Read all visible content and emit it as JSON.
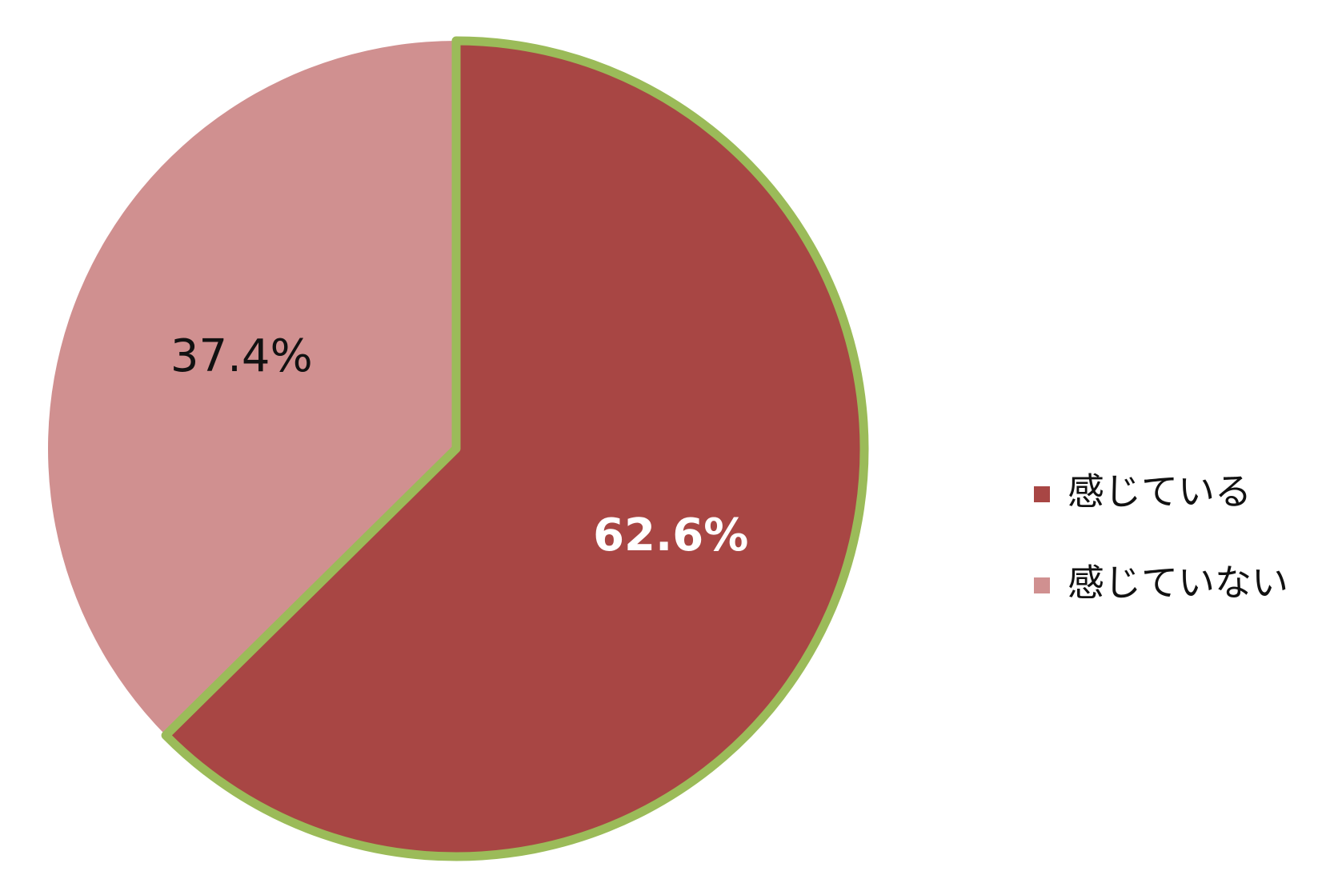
{
  "chart_data": {
    "type": "pie",
    "categories": [
      "感じている",
      "感じていない"
    ],
    "values": [
      62.6,
      37.4
    ],
    "value_labels": [
      "62.6%",
      "37.4%"
    ],
    "colors": [
      "#a84644",
      "#d09090"
    ],
    "highlight_color": "#9bbb59",
    "legend": "right"
  }
}
